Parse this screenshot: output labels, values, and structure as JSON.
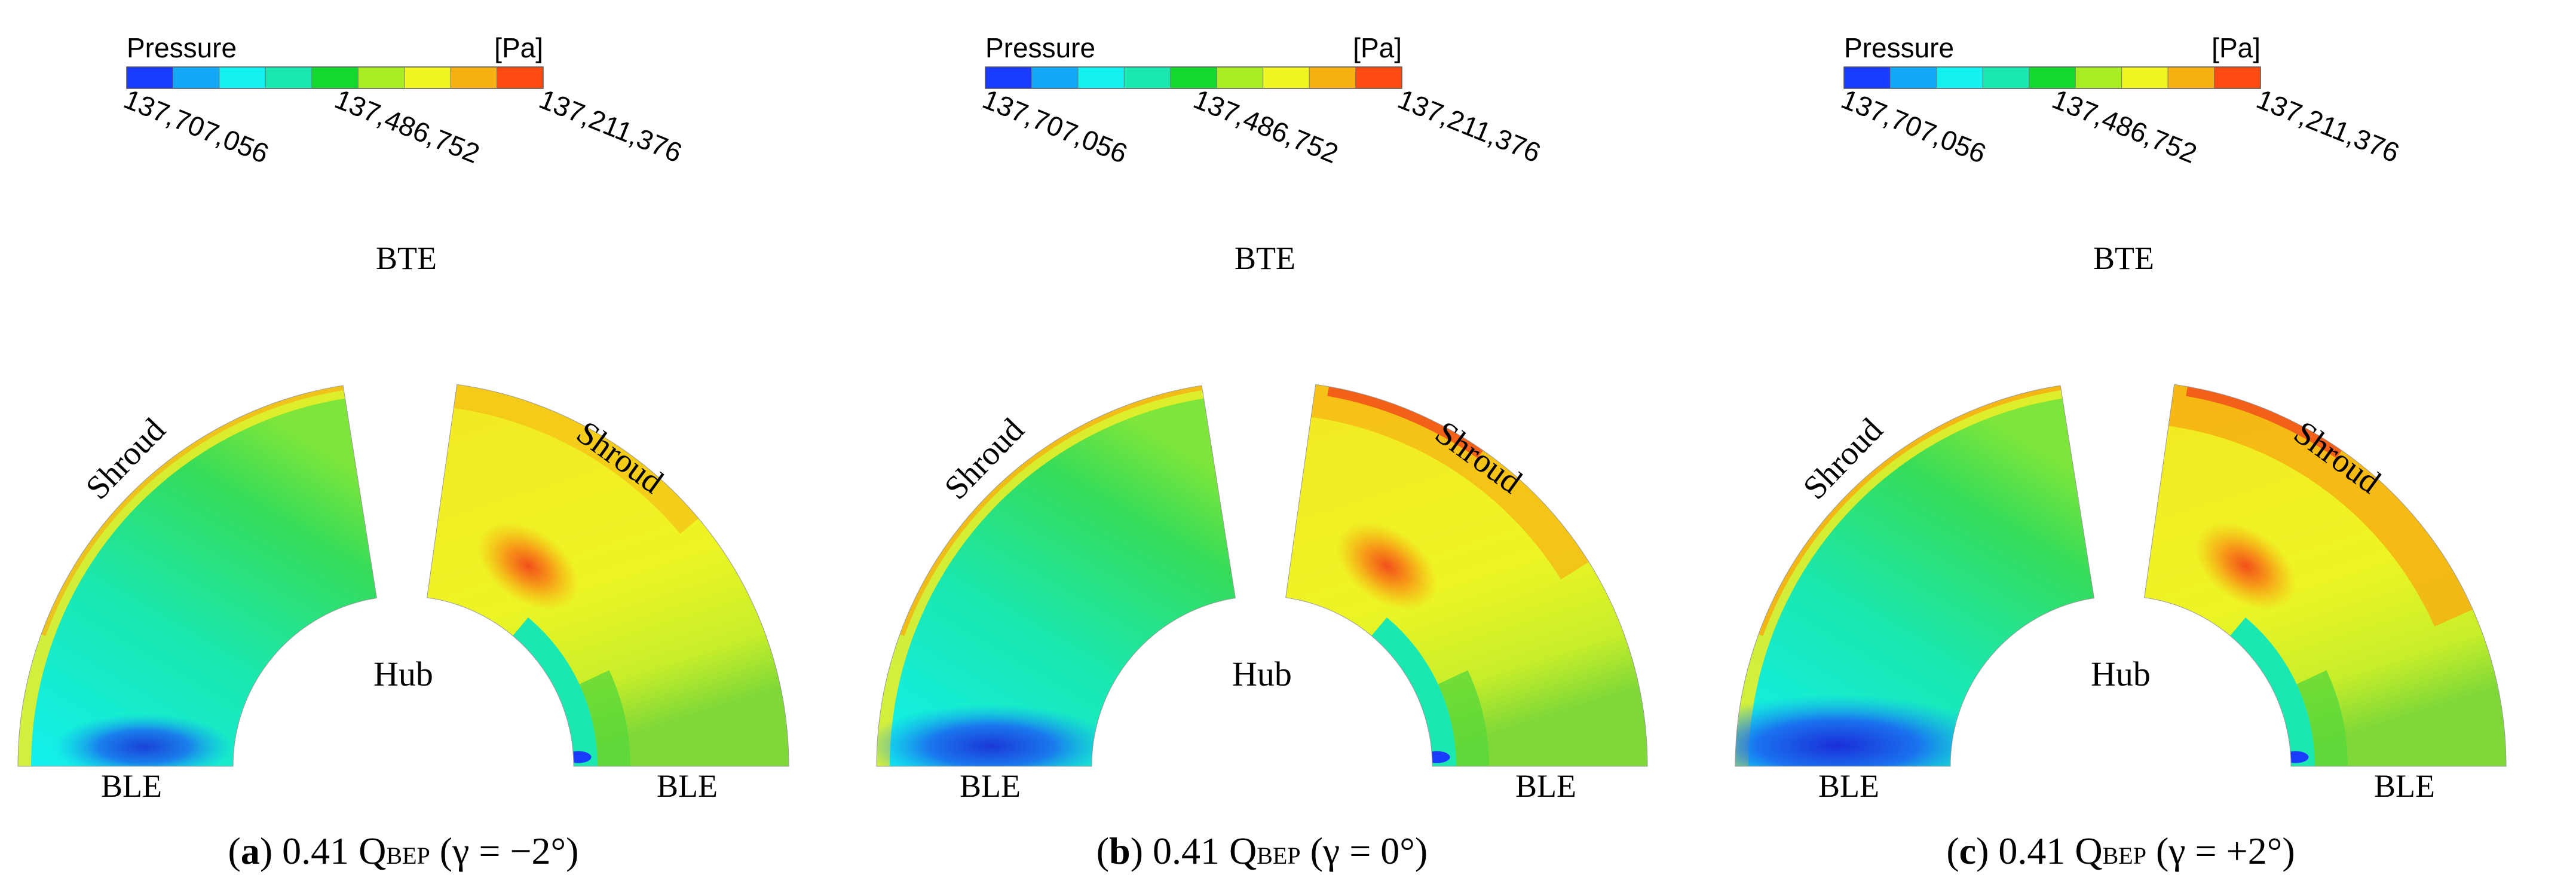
{
  "colorbar": {
    "title": "Pressure",
    "unit": "[Pa]",
    "ticks": [
      "137,707,056",
      "137,486,752",
      "137,211,376"
    ],
    "colors": [
      "#1a3cff",
      "#12a8f5",
      "#12f0f0",
      "#1ae8b0",
      "#12d830",
      "#a8ee22",
      "#f0f622",
      "#f6b012",
      "#ff4a12"
    ]
  },
  "labels": {
    "hub": "Hub",
    "shroud": "Shroud",
    "bte": "BTE",
    "ble": "BLE"
  },
  "panels": [
    {
      "letter": "a",
      "flow": "0.41 Q",
      "sub": "BEP",
      "gamma": "(γ = −2°)",
      "before": "(",
      "after": ")"
    },
    {
      "letter": "b",
      "flow": "0.41 Q",
      "sub": "BEP",
      "gamma": "(γ = 0°)",
      "before": "(",
      "after": ")"
    },
    {
      "letter": "c",
      "flow": "0.41 Q",
      "sub": "BEP",
      "gamma": "(γ = +2°)",
      "before": "(",
      "after": ")"
    }
  ]
}
